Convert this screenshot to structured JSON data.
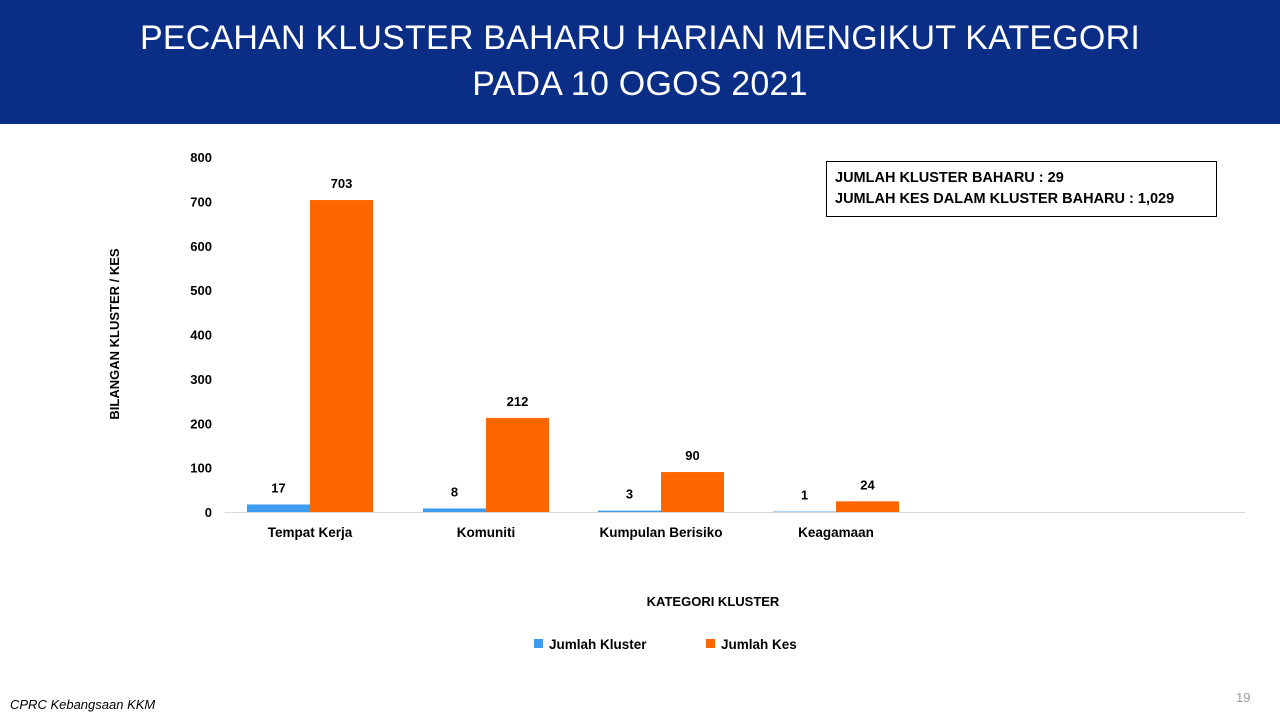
{
  "header": {
    "title_line1": "PECAHAN KLUSTER BAHARU HARIAN MENGIKUT KATEGORI",
    "title_line2": "PADA 10 OGOS 2021"
  },
  "summary": {
    "line1": "JUMLAH KLUSTER BAHARU : 29",
    "line2": "JUMLAH KES DALAM KLUSTER BAHARU : 1,029"
  },
  "footer": {
    "source": "CPRC Kebangsaan KKM",
    "page_number": "19"
  },
  "colors": {
    "banner": "#0a2d86",
    "series_kluster": "#3d9cf0",
    "series_kes": "#ff6600"
  },
  "chart_data": {
    "type": "bar",
    "categories": [
      "Tempat Kerja",
      "Komuniti",
      "Kumpulan Berisiko",
      "Keagamaan"
    ],
    "series": [
      {
        "name": "Jumlah Kluster",
        "values": [
          17,
          8,
          3,
          1
        ]
      },
      {
        "name": "Jumlah Kes",
        "values": [
          703,
          212,
          90,
          24
        ]
      }
    ],
    "xlabel": "KATEGORI KLUSTER",
    "ylabel": "BILANGAN KLUSTER / KES",
    "ylim": [
      0,
      800
    ],
    "yticks": [
      0,
      100,
      200,
      300,
      400,
      500,
      600,
      700,
      800
    ],
    "grid": false,
    "legend": "bottom"
  }
}
